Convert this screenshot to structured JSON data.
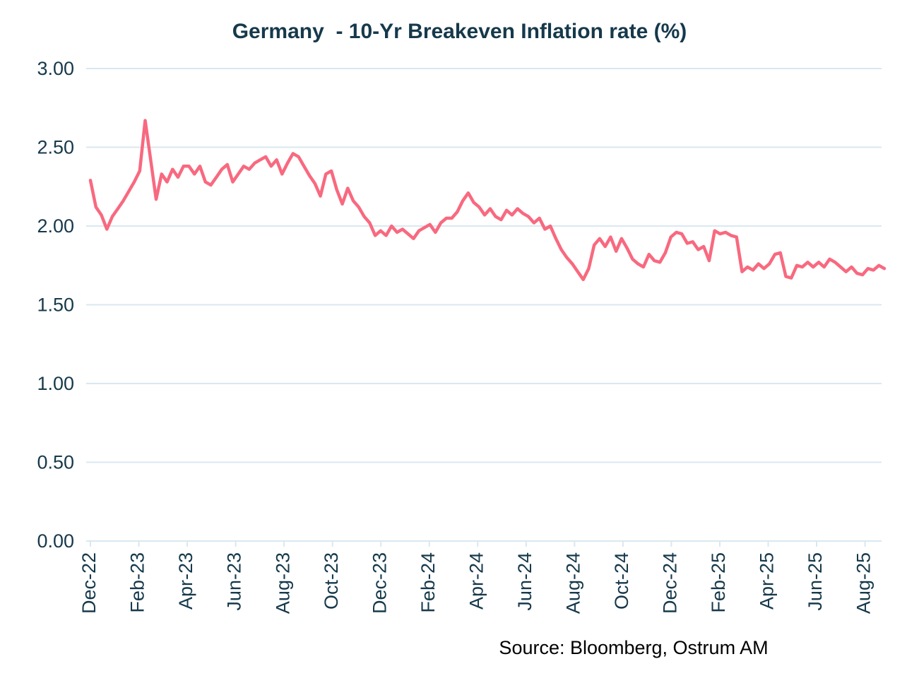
{
  "header": {
    "title": "Germany  - 10-Yr Breakeven Inflation rate (%)"
  },
  "footer": {
    "source": "Source: Bloomberg, Ostrum AM"
  },
  "colors": {
    "line": "#f8697f",
    "grid": "#d9e8f1",
    "axis_text": "#16394b",
    "title_text": "#16394b",
    "source_text": "#000000",
    "background": "#ffffff"
  },
  "chart_data": {
    "type": "line",
    "title": "Germany - 10-Yr Breakeven Inflation rate (%)",
    "series_name": "Germany 10-Yr Breakeven Inflation rate (%)",
    "xlabel": "",
    "ylabel": "",
    "ylim": [
      0,
      3
    ],
    "y_tick_step": 0.5,
    "y_tick_labels": [
      "0.00",
      "0.50",
      "1.00",
      "1.50",
      "2.00",
      "2.50",
      "3.00"
    ],
    "x_tick_labels": [
      "Dec-22",
      "Feb-23",
      "Apr-23",
      "Jun-23",
      "Aug-23",
      "Oct-23",
      "Dec-23",
      "Feb-24",
      "Apr-24",
      "Jun-24",
      "Aug-24",
      "Oct-24",
      "Dec-24",
      "Feb-25",
      "Apr-25",
      "Jun-25",
      "Aug-25"
    ],
    "months_per_tick": 2,
    "total_months": 32.8,
    "x_start": "Dec-22",
    "x_end": "Sep-25",
    "grid": true,
    "legend_position": "none",
    "values_unit": "percent",
    "values": [
      2.29,
      2.12,
      2.07,
      1.98,
      2.06,
      2.11,
      2.16,
      2.22,
      2.28,
      2.35,
      2.67,
      2.42,
      2.17,
      2.33,
      2.28,
      2.36,
      2.31,
      2.38,
      2.38,
      2.33,
      2.38,
      2.28,
      2.26,
      2.31,
      2.36,
      2.39,
      2.28,
      2.33,
      2.38,
      2.36,
      2.4,
      2.42,
      2.44,
      2.38,
      2.42,
      2.33,
      2.4,
      2.46,
      2.44,
      2.38,
      2.32,
      2.27,
      2.19,
      2.33,
      2.35,
      2.23,
      2.14,
      2.24,
      2.16,
      2.12,
      2.06,
      2.02,
      1.94,
      1.97,
      1.94,
      2.0,
      1.96,
      1.98,
      1.95,
      1.92,
      1.97,
      1.99,
      2.01,
      1.96,
      2.02,
      2.05,
      2.05,
      2.09,
      2.16,
      2.21,
      2.15,
      2.12,
      2.07,
      2.11,
      2.06,
      2.04,
      2.1,
      2.07,
      2.11,
      2.08,
      2.06,
      2.02,
      2.05,
      1.98,
      2.0,
      1.92,
      1.85,
      1.8,
      1.76,
      1.71,
      1.66,
      1.73,
      1.88,
      1.92,
      1.87,
      1.93,
      1.84,
      1.92,
      1.86,
      1.79,
      1.76,
      1.74,
      1.82,
      1.78,
      1.77,
      1.83,
      1.93,
      1.96,
      1.95,
      1.89,
      1.9,
      1.85,
      1.87,
      1.78,
      1.97,
      1.95,
      1.96,
      1.94,
      1.93,
      1.71,
      1.74,
      1.72,
      1.76,
      1.73,
      1.76,
      1.82,
      1.83,
      1.68,
      1.67,
      1.75,
      1.74,
      1.77,
      1.74,
      1.77,
      1.74,
      1.79,
      1.77,
      1.74,
      1.71,
      1.74,
      1.7,
      1.69,
      1.73,
      1.72,
      1.75,
      1.73
    ]
  }
}
